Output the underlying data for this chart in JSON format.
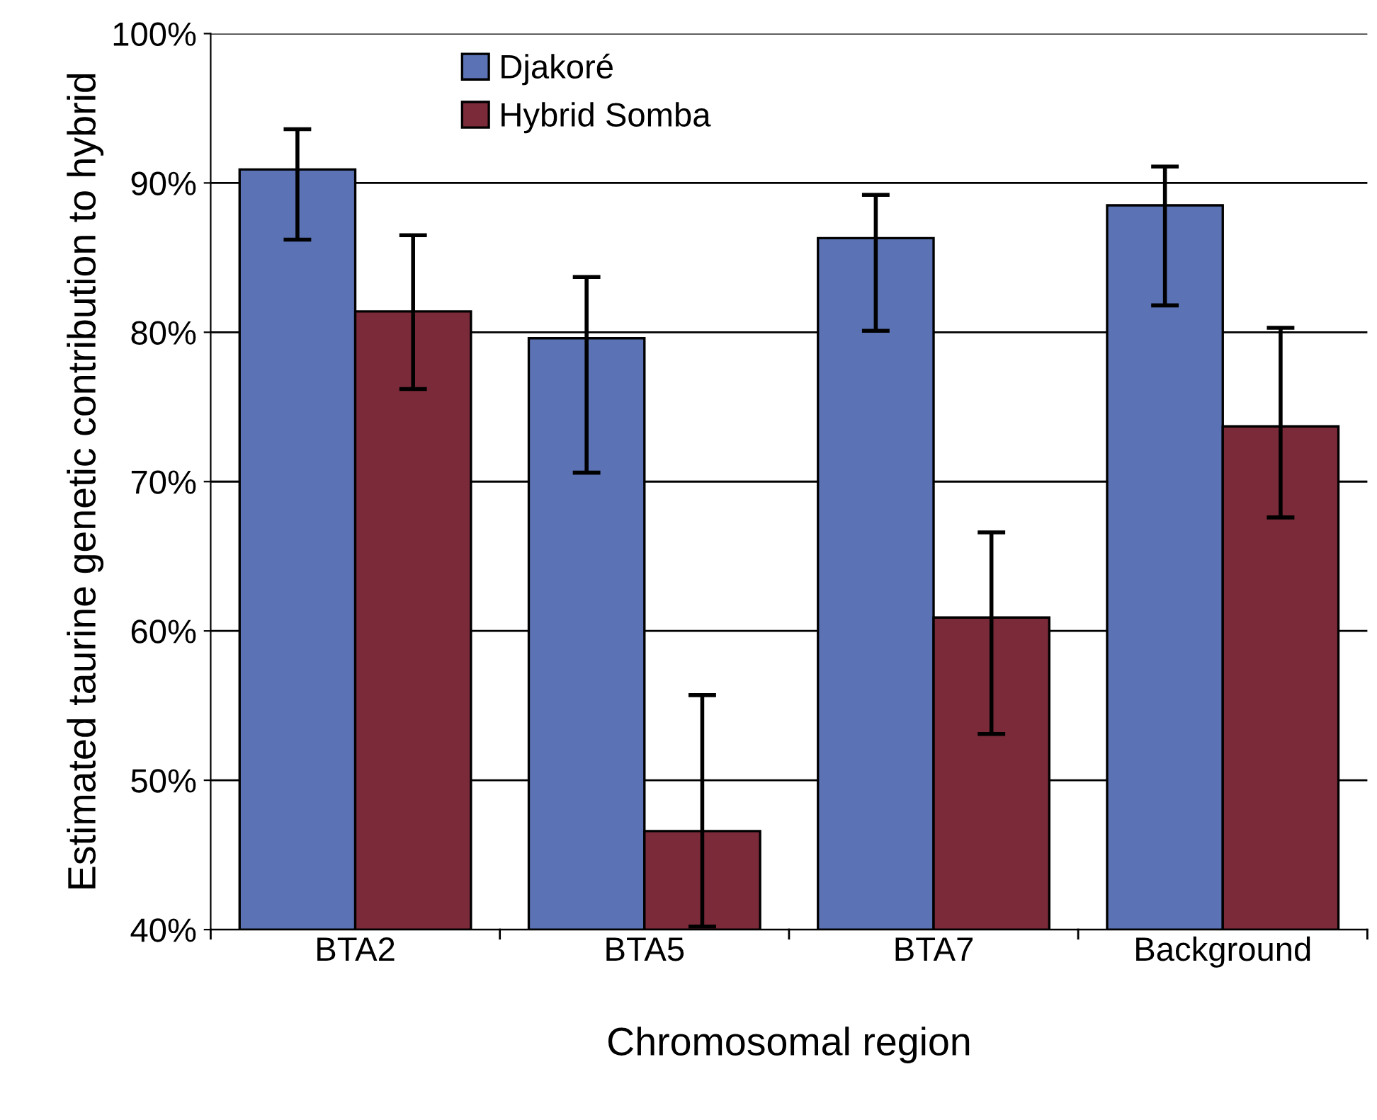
{
  "chart_data": {
    "type": "bar",
    "xlabel": "Chromosomal region",
    "ylabel": "Estimated taurine genetic contribution to hybrid",
    "categories": [
      "BTA2",
      "BTA5",
      "BTA7",
      "Background"
    ],
    "series": [
      {
        "name": "Djakoré",
        "color": "#5b73b4",
        "values": [
          90.9,
          79.6,
          86.3,
          88.5
        ],
        "errors": [
          [
            86.2,
            93.6
          ],
          [
            70.6,
            83.7
          ],
          [
            80.1,
            89.2
          ],
          [
            81.8,
            91.1
          ]
        ]
      },
      {
        "name": "Hybrid Somba",
        "color": "#7b2a3a",
        "values": [
          81.4,
          46.6,
          60.9,
          73.7
        ],
        "errors": [
          [
            76.2,
            86.5
          ],
          [
            40.2,
            55.7
          ],
          [
            53.1,
            66.6
          ],
          [
            67.6,
            80.3
          ]
        ]
      }
    ],
    "ylim": [
      40,
      100
    ],
    "yticks": [
      {
        "value": 40,
        "label": "40%"
      },
      {
        "value": 50,
        "label": "50%"
      },
      {
        "value": 60,
        "label": "60%"
      },
      {
        "value": 70,
        "label": "70%"
      },
      {
        "value": 80,
        "label": "80%"
      },
      {
        "value": 90,
        "label": "90%"
      },
      {
        "value": 100,
        "label": "100%"
      }
    ],
    "grid": "y",
    "legend": "top left"
  }
}
